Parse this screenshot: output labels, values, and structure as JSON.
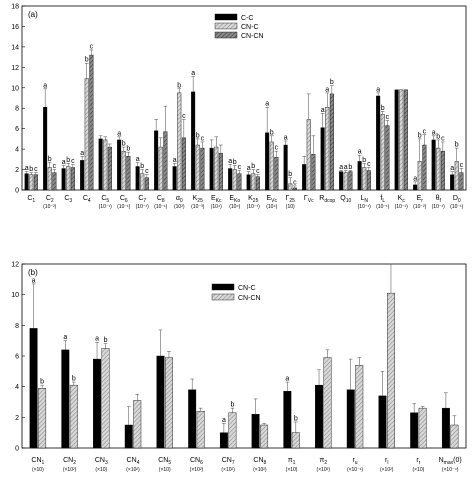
{
  "chart_data": [
    {
      "type": "bar",
      "panel_label": "(a)",
      "ylim": [
        0,
        18
      ],
      "yticks": [
        0,
        2,
        4,
        6,
        8,
        10,
        12,
        14,
        16,
        18
      ],
      "series": [
        {
          "name": "C-C",
          "color": "#000000",
          "pattern": "solid"
        },
        {
          "name": "CN-C",
          "color": "#bbbbbb",
          "pattern": "hatch-light"
        },
        {
          "name": "CN-CN",
          "color": "#666666",
          "pattern": "hatch-dark"
        }
      ],
      "legend_position": "top-center",
      "categories": [
        {
          "label": "C",
          "sub": "1",
          "scale": "",
          "values": [
            1.6,
            1.5,
            1.5
          ],
          "errors": [
            0.2,
            0.2,
            0.2
          ],
          "letters": [
            "a",
            "b",
            "c"
          ]
        },
        {
          "label": "C",
          "sub": "2",
          "scale": "(10⁻²)",
          "values": [
            8.1,
            2.2,
            1.7
          ],
          "errors": [
            1.8,
            0.5,
            0.3
          ],
          "letters": [
            "a",
            "b",
            "c"
          ]
        },
        {
          "label": "C",
          "sub": "3",
          "scale": "",
          "values": [
            2.1,
            2.3,
            2.2
          ],
          "errors": [
            0.3,
            0.3,
            0.3
          ],
          "letters": [
            "a",
            "b",
            "c"
          ]
        },
        {
          "label": "C",
          "sub": "4",
          "scale": "",
          "values": [
            2.9,
            10.9,
            13.2
          ],
          "errors": [
            0.4,
            1.5,
            0.5
          ],
          "letters": [
            "a",
            "b",
            "c"
          ]
        },
        {
          "label": "C",
          "sub": "5",
          "scale": "(10⁻¹)",
          "values": [
            5.0,
            4.9,
            4.2
          ],
          "errors": [
            0.3,
            0.3,
            0.3
          ],
          "letters": [
            "",
            "",
            ""
          ]
        },
        {
          "label": "C",
          "sub": "6",
          "scale": "(10⁻¹)",
          "values": [
            4.9,
            3.8,
            3.3
          ],
          "errors": [
            0.3,
            0.4,
            0.4
          ],
          "letters": [
            "a",
            "b",
            "b"
          ]
        },
        {
          "label": "C",
          "sub": "7",
          "scale": "(10⁻¹)",
          "values": [
            2.3,
            1.6,
            1.2
          ],
          "errors": [
            0.4,
            0.4,
            0.3
          ],
          "letters": [
            "a",
            "b",
            "c"
          ]
        },
        {
          "label": "C",
          "sub": "8",
          "scale": "(10⁻¹)",
          "values": [
            5.8,
            4.2,
            5.7
          ],
          "errors": [
            1.1,
            0.9,
            2.5
          ],
          "letters": [
            "",
            "",
            ""
          ]
        },
        {
          "label": "α",
          "sub": "0",
          "scale": "(10²)",
          "values": [
            2.3,
            9.5,
            5.1
          ],
          "errors": [
            0.3,
            0.4,
            1.8
          ],
          "letters": [
            "a",
            "b",
            "c"
          ]
        },
        {
          "label": "K",
          "sub": "25",
          "scale": "(10⁻³)",
          "values": [
            9.6,
            4.4,
            4.1
          ],
          "errors": [
            1.5,
            0.6,
            0.6
          ],
          "letters": [
            "a",
            "b",
            "c"
          ]
        },
        {
          "label": "E",
          "sub": "Kc",
          "scale": "(10⁴)",
          "values": [
            4.1,
            4.2,
            3.6
          ],
          "errors": [
            0.8,
            1.0,
            0.8
          ],
          "letters": [
            "",
            "",
            ""
          ]
        },
        {
          "label": "E",
          "sub": "Ko",
          "scale": "(10⁴)",
          "values": [
            2.1,
            2.0,
            1.6
          ],
          "errors": [
            0.4,
            0.4,
            0.3
          ],
          "letters": [
            "a",
            "b",
            "c"
          ]
        },
        {
          "label": "K",
          "sub": "25",
          "scale": "(10⁻¹)",
          "values": [
            1.5,
            1.6,
            1.3
          ],
          "errors": [
            0.3,
            0.4,
            0.2
          ],
          "letters": [
            "a",
            "b",
            "c"
          ]
        },
        {
          "label": "E",
          "sub": "Vc",
          "scale": "(10⁴)",
          "values": [
            5.6,
            4.7,
            3.2
          ],
          "errors": [
            2.5,
            0.6,
            0.6
          ],
          "letters": [
            "a",
            "b",
            "c"
          ]
        },
        {
          "label": "Γ",
          "sub": "25",
          "scale": "(10)",
          "values": [
            4.4,
            0.6,
            0.2
          ],
          "errors": [
            0.4,
            0.6,
            0.2
          ],
          "letters": [
            "a",
            "b",
            "c"
          ]
        },
        {
          "label": "Γ",
          "sub": "Vc",
          "scale": "",
          "values": [
            2.5,
            6.9,
            3.5
          ],
          "errors": [
            0.8,
            2.5,
            1.8
          ],
          "letters": [
            "",
            "",
            ""
          ]
        },
        {
          "label": "R",
          "sub": "dcop",
          "scale": "",
          "values": [
            6.1,
            8.1,
            9.4
          ],
          "errors": [
            1.4,
            1.4,
            0.8
          ],
          "letters": [
            "a",
            "a",
            "b"
          ]
        },
        {
          "label": "Q",
          "sub": "10",
          "scale": "",
          "values": [
            1.8,
            1.7,
            1.8
          ],
          "errors": [
            0.1,
            0.2,
            0.1
          ],
          "letters": [
            "a",
            "a",
            "b"
          ]
        },
        {
          "label": "L",
          "sub": "N",
          "scale": "(10⁻¹)",
          "values": [
            2.8,
            2.2,
            1.9
          ],
          "errors": [
            0.6,
            0.4,
            0.3
          ],
          "letters": [
            "a",
            "b",
            "c"
          ]
        },
        {
          "label": "f",
          "sub": "L",
          "scale": "(10⁻¹)",
          "values": [
            9.2,
            7.4,
            6.3
          ],
          "errors": [
            0.3,
            0.3,
            0.5
          ],
          "letters": [
            "a",
            "b",
            "c"
          ]
        },
        {
          "label": "K",
          "sub": "c",
          "scale": "(10⁻¹)",
          "values": [
            9.8,
            9.8,
            9.8
          ],
          "errors": [
            0,
            0,
            0
          ],
          "letters": [
            "",
            "",
            ""
          ]
        },
        {
          "label": "E",
          "sub": "r",
          "scale": "(10⁻²)",
          "values": [
            0.5,
            2.8,
            4.4
          ],
          "errors": [
            0.3,
            2.2,
            1.0
          ],
          "letters": [
            "a",
            "b",
            "c"
          ]
        },
        {
          "label": "θ",
          "sub": "f",
          "scale": "(10⁻¹)",
          "values": [
            4.9,
            4.1,
            3.8
          ],
          "errors": [
            0.4,
            0.8,
            0.9
          ],
          "letters": [
            "a",
            "b",
            "c"
          ]
        },
        {
          "label": "D",
          "sub": "0",
          "scale": "(10⁻¹)",
          "values": [
            1.5,
            2.8,
            1.7
          ],
          "errors": [
            0.3,
            1.3,
            0.4
          ],
          "letters": [
            "a",
            "b",
            "c"
          ]
        }
      ],
      "legend_letters_note": ""
    },
    {
      "type": "bar",
      "panel_label": "(b)",
      "ylim": [
        0,
        12
      ],
      "yticks": [
        0,
        2,
        4,
        6,
        8,
        10,
        12
      ],
      "series": [
        {
          "name": "CN-C",
          "color": "#000000",
          "pattern": "solid"
        },
        {
          "name": "CN-CN",
          "color": "#bbbbbb",
          "pattern": "hatch-light"
        }
      ],
      "legend_position": "top-center",
      "categories": [
        {
          "label": "CN",
          "sub": "1",
          "scale": "(×10)",
          "values": [
            7.8,
            3.9
          ],
          "errors": [
            2.9,
            0.2
          ],
          "letters": [
            "a",
            "b"
          ]
        },
        {
          "label": "CN",
          "sub": "2",
          "scale": "(×10²)",
          "values": [
            6.4,
            4.1
          ],
          "errors": [
            0.6,
            0.2
          ],
          "letters": [
            "a",
            "b"
          ]
        },
        {
          "label": "CN",
          "sub": "3",
          "scale": "(×10)",
          "values": [
            5.8,
            6.5
          ],
          "errors": [
            1.1,
            0.3
          ],
          "letters": [
            "a",
            "b"
          ]
        },
        {
          "label": "CN",
          "sub": "4",
          "scale": "(×10²)",
          "values": [
            1.5,
            3.1
          ],
          "errors": [
            1.2,
            0.4
          ],
          "letters": [
            "",
            ""
          ]
        },
        {
          "label": "CN",
          "sub": "5",
          "scale": "(×10)",
          "values": [
            6.0,
            5.9
          ],
          "errors": [
            1.7,
            0.4
          ],
          "letters": [
            "",
            ""
          ]
        },
        {
          "label": "CN",
          "sub": "6",
          "scale": "(×10²)",
          "values": [
            3.8,
            2.4
          ],
          "errors": [
            0.7,
            0.2
          ],
          "letters": [
            "",
            ""
          ]
        },
        {
          "label": "CN",
          "sub": "7",
          "scale": "(×10²)",
          "values": [
            1.0,
            2.3
          ],
          "errors": [
            0.6,
            0.3
          ],
          "letters": [
            "a",
            "b"
          ]
        },
        {
          "label": "CN",
          "sub": "8",
          "scale": "(×10²)",
          "values": [
            2.2,
            1.5
          ],
          "errors": [
            1.0,
            0.1
          ],
          "letters": [
            "",
            ""
          ]
        },
        {
          "label": "π",
          "sub": "1",
          "scale": "(×10)",
          "values": [
            3.7,
            1.0
          ],
          "errors": [
            0.6,
            0.7
          ],
          "letters": [
            "a",
            "b"
          ]
        },
        {
          "label": "π",
          "sub": "2",
          "scale": "(×10²)",
          "values": [
            4.1,
            5.9
          ],
          "errors": [
            1.0,
            0.5
          ],
          "letters": [
            "",
            ""
          ]
        },
        {
          "label": "r",
          "sub": "u",
          "scale": "(×10⁻¹)",
          "values": [
            3.8,
            5.4
          ],
          "errors": [
            2.0,
            0.5
          ],
          "letters": [
            "",
            ""
          ]
        },
        {
          "label": "r",
          "sub": "l",
          "scale": "(×10²)",
          "values": [
            3.4,
            10.1
          ],
          "errors": [
            1.6,
            1.9
          ],
          "letters": [
            "",
            ""
          ]
        },
        {
          "label": "r",
          "sub": "r",
          "scale": "(×10)",
          "values": [
            2.3,
            2.6
          ],
          "errors": [
            0.6,
            0.1
          ],
          "letters": [
            "",
            ""
          ]
        },
        {
          "label": "N",
          "sub": "max",
          "scale": "(×10⁻⁴)",
          "values": [
            2.6,
            1.5
          ],
          "errors": [
            1.0,
            0.6
          ],
          "letters": [
            "",
            ""
          ],
          "suffix": "(0)"
        }
      ]
    }
  ]
}
